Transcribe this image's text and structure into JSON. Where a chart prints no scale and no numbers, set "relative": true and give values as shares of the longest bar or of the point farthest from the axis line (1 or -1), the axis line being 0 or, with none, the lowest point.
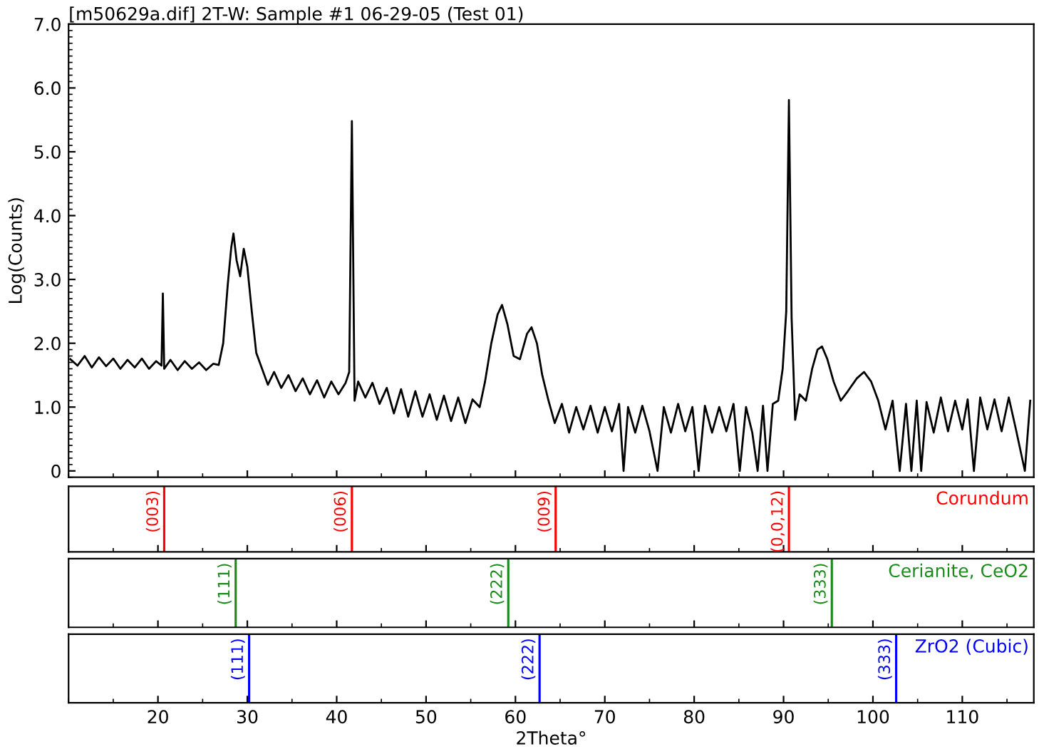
{
  "chart_data": [
    {
      "type": "line",
      "title": "[m50629a.dif] 2T-W: Sample #1 06-29-05 (Test 01)",
      "ylabel": "Log(Counts)",
      "xlim": [
        10,
        118
      ],
      "xticks": [
        20,
        30,
        40,
        50,
        60,
        70,
        80,
        90,
        100,
        110
      ],
      "ylim": [
        -0.1,
        7.0
      ],
      "yticks": [
        0,
        {
          "value": 1,
          "label": "1.0"
        },
        {
          "value": 2,
          "label": "2.0"
        },
        {
          "value": 3,
          "label": "3.0"
        },
        {
          "value": 4,
          "label": "4.0"
        },
        {
          "value": 5,
          "label": "5.0"
        },
        {
          "value": 6,
          "label": "6.0"
        },
        {
          "value": 7,
          "label": "7.0"
        }
      ],
      "tick_labels": "y",
      "grid": false,
      "legend": false,
      "series": [
        {
          "color": "#000000",
          "x": [
            10.2,
            11,
            11.8,
            12.6,
            13.4,
            14.2,
            15,
            15.8,
            16.6,
            17.4,
            18.2,
            19,
            19.8,
            20.4,
            20.55,
            20.7,
            21.4,
            22.2,
            23,
            23.8,
            24.6,
            25.4,
            26.2,
            26.8,
            27.3,
            27.8,
            28.2,
            28.45,
            28.8,
            29.2,
            29.6,
            30,
            30.5,
            31,
            31.6,
            32.3,
            33,
            33.8,
            34.6,
            35.4,
            36.2,
            37,
            37.8,
            38.6,
            39.4,
            40.2,
            41,
            41.4,
            41.7,
            42,
            42.4,
            43.2,
            44,
            44.8,
            45.6,
            46.4,
            47.2,
            48,
            48.8,
            49.6,
            50.4,
            51.2,
            52,
            52.8,
            53.6,
            54.4,
            55.2,
            56,
            56.6,
            57.3,
            58,
            58.5,
            59.1,
            59.8,
            60.5,
            61.3,
            61.8,
            62.4,
            63,
            63.7,
            64.4,
            65.2,
            66,
            66.8,
            67.6,
            68.4,
            69.2,
            70,
            70.8,
            71.6,
            72.1,
            72.6,
            73.4,
            74.2,
            75,
            75.9,
            76.6,
            77.4,
            78.2,
            79,
            79.8,
            80.5,
            81.2,
            82,
            82.8,
            83.6,
            84.4,
            85.1,
            85.8,
            86.5,
            87.1,
            87.7,
            88.2,
            88.8,
            89.4,
            89.9,
            90.3,
            90.6,
            90.9,
            91.3,
            91.8,
            92.5,
            93.2,
            93.8,
            94.3,
            94.9,
            95.6,
            96.4,
            97.2,
            98.2,
            99,
            99.8,
            100.6,
            101.4,
            102.2,
            103,
            103.7,
            104.3,
            104.9,
            105.4,
            106,
            106.8,
            107.6,
            108.4,
            109.2,
            110,
            110.6,
            111.3,
            112,
            112.8,
            113.6,
            114.4,
            115.2,
            116,
            117,
            117.6
          ],
          "values": [
            1.75,
            1.65,
            1.8,
            1.62,
            1.78,
            1.64,
            1.76,
            1.6,
            1.74,
            1.62,
            1.76,
            1.6,
            1.72,
            1.65,
            2.78,
            1.6,
            1.74,
            1.58,
            1.72,
            1.6,
            1.7,
            1.58,
            1.68,
            1.66,
            2.0,
            2.9,
            3.5,
            3.72,
            3.3,
            3.05,
            3.48,
            3.2,
            2.5,
            1.85,
            1.62,
            1.35,
            1.55,
            1.3,
            1.5,
            1.25,
            1.45,
            1.2,
            1.42,
            1.15,
            1.4,
            1.2,
            1.38,
            1.55,
            5.48,
            1.1,
            1.4,
            1.15,
            1.38,
            1.05,
            1.3,
            0.9,
            1.28,
            0.85,
            1.25,
            0.85,
            1.2,
            0.8,
            1.18,
            0.78,
            1.15,
            0.75,
            1.12,
            1.0,
            1.4,
            2.0,
            2.45,
            2.6,
            2.3,
            1.8,
            1.75,
            2.15,
            2.25,
            2.0,
            1.5,
            1.1,
            0.75,
            1.05,
            0.6,
            1.0,
            0.65,
            1.02,
            0.6,
            1.0,
            0.62,
            1.05,
            0.0,
            1.0,
            0.6,
            1.02,
            0.62,
            0.0,
            1.0,
            0.6,
            1.05,
            0.62,
            1.0,
            0.0,
            1.02,
            0.6,
            1.0,
            0.62,
            1.05,
            0.0,
            1.0,
            0.6,
            0.0,
            1.02,
            0.0,
            1.05,
            1.1,
            1.6,
            2.5,
            5.81,
            2.4,
            0.8,
            1.2,
            1.1,
            1.6,
            1.9,
            1.95,
            1.75,
            1.4,
            1.1,
            1.25,
            1.45,
            1.55,
            1.4,
            1.1,
            0.65,
            1.1,
            0.0,
            1.05,
            0.0,
            1.1,
            0.0,
            1.08,
            0.6,
            1.15,
            0.62,
            1.1,
            0.65,
            1.12,
            0.0,
            1.15,
            0.65,
            1.12,
            0.62,
            1.15,
            0.65,
            0.0,
            1.1
          ]
        }
      ]
    },
    {
      "type": "bar",
      "relative": true,
      "xlim": [
        10,
        118
      ],
      "xticks": [
        20,
        30,
        40,
        50,
        60,
        70,
        80,
        90,
        100,
        110
      ],
      "tick_labels": false,
      "annotations": [
        {
          "text": "(003)",
          "x": 20.7,
          "y": 1
        },
        {
          "text": "(006)",
          "x": 41.7,
          "y": 1
        },
        {
          "text": "(009)",
          "x": 64.5,
          "y": 1
        },
        {
          "text": "(0,0,12)",
          "x": 90.6,
          "y": 1
        }
      ],
      "series": [
        {
          "name": "Corundum",
          "color": "#ff0000",
          "x": [
            20.7,
            41.7,
            64.5,
            90.6
          ],
          "values": [
            1,
            1,
            1,
            1
          ]
        }
      ]
    },
    {
      "type": "bar",
      "relative": true,
      "xlim": [
        10,
        118
      ],
      "xticks": [
        20,
        30,
        40,
        50,
        60,
        70,
        80,
        90,
        100,
        110
      ],
      "tick_labels": false,
      "annotations": [
        {
          "text": "(111)",
          "x": 28.7,
          "y": 1
        },
        {
          "text": "(222)",
          "x": 59.2,
          "y": 1
        },
        {
          "text": "(333)",
          "x": 95.4,
          "y": 1
        }
      ],
      "series": [
        {
          "name": "Cerianite, CeO2",
          "color": "#1a8a1a",
          "x": [
            28.7,
            59.2,
            95.4
          ],
          "values": [
            1,
            1,
            1
          ]
        }
      ]
    },
    {
      "type": "bar",
      "relative": true,
      "xlabel": "2Theta°",
      "xlim": [
        10,
        118
      ],
      "xticks": [
        20,
        30,
        40,
        50,
        60,
        70,
        80,
        90,
        100,
        110
      ],
      "tick_labels": "x",
      "annotations": [
        {
          "text": "(111)",
          "x": 30.2,
          "y": 1
        },
        {
          "text": "(222)",
          "x": 62.7,
          "y": 1
        },
        {
          "text": "(333)",
          "x": 102.6,
          "y": 1
        }
      ],
      "series": [
        {
          "name": "ZrO2 (Cubic)",
          "color": "#0000ff",
          "x": [
            30.2,
            62.7,
            102.6
          ],
          "values": [
            1,
            1,
            1
          ]
        }
      ]
    }
  ]
}
